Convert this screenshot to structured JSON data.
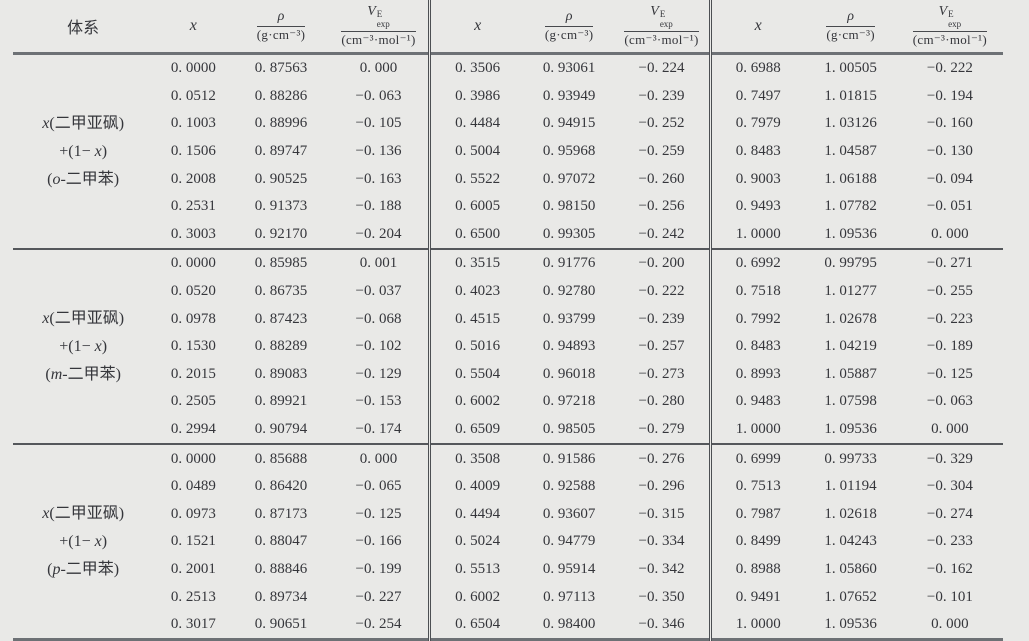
{
  "colors": {
    "background": "#e9e9e7",
    "text": "#35363b",
    "rule_dark": "#54575b",
    "rule_thick": "#6d7175"
  },
  "header": {
    "system": "体系",
    "x": "x",
    "rho_symbol": "ρ",
    "rho_unit": "(g·cm⁻³)",
    "ve_symbol": "V",
    "ve_sup": "E",
    "ve_sub": "exp",
    "ve_unit": "(cm⁻³·mol⁻¹)"
  },
  "groups": [
    {
      "label_lines": [
        "x(二甲亚砜)",
        "+(1− x)",
        "(o-二甲苯)"
      ],
      "blocks": [
        [
          [
            "0. 0000",
            "0. 87563",
            "0. 000"
          ],
          [
            "0. 0512",
            "0. 88286",
            "−0. 063"
          ],
          [
            "0. 1003",
            "0. 88996",
            "−0. 105"
          ],
          [
            "0. 1506",
            "0. 89747",
            "−0. 136"
          ],
          [
            "0. 2008",
            "0. 90525",
            "−0. 163"
          ],
          [
            "0. 2531",
            "0. 91373",
            "−0. 188"
          ],
          [
            "0. 3003",
            "0. 92170",
            "−0. 204"
          ]
        ],
        [
          [
            "0. 3506",
            "0. 93061",
            "−0. 224"
          ],
          [
            "0. 3986",
            "0. 93949",
            "−0. 239"
          ],
          [
            "0. 4484",
            "0. 94915",
            "−0. 252"
          ],
          [
            "0. 5004",
            "0. 95968",
            "−0. 259"
          ],
          [
            "0. 5522",
            "0. 97072",
            "−0. 260"
          ],
          [
            "0. 6005",
            "0. 98150",
            "−0. 256"
          ],
          [
            "0. 6500",
            "0. 99305",
            "−0. 242"
          ]
        ],
        [
          [
            "0. 6988",
            "1. 00505",
            "−0. 222"
          ],
          [
            "0. 7497",
            "1. 01815",
            "−0. 194"
          ],
          [
            "0. 7979",
            "1. 03126",
            "−0. 160"
          ],
          [
            "0. 8483",
            "1. 04587",
            "−0. 130"
          ],
          [
            "0. 9003",
            "1. 06188",
            "−0. 094"
          ],
          [
            "0. 9493",
            "1. 07782",
            "−0. 051"
          ],
          [
            "1. 0000",
            "1. 09536",
            "0. 000"
          ]
        ]
      ]
    },
    {
      "label_lines": [
        "x(二甲亚砜)",
        "+(1− x)",
        "(m-二甲苯)"
      ],
      "blocks": [
        [
          [
            "0. 0000",
            "0. 85985",
            "0. 001"
          ],
          [
            "0. 0520",
            "0. 86735",
            "−0. 037"
          ],
          [
            "0. 0978",
            "0. 87423",
            "−0. 068"
          ],
          [
            "0. 1530",
            "0. 88289",
            "−0. 102"
          ],
          [
            "0. 2015",
            "0. 89083",
            "−0. 129"
          ],
          [
            "0. 2505",
            "0. 89921",
            "−0. 153"
          ],
          [
            "0. 2994",
            "0. 90794",
            "−0. 174"
          ]
        ],
        [
          [
            "0. 3515",
            "0. 91776",
            "−0. 200"
          ],
          [
            "0. 4023",
            "0. 92780",
            "−0. 222"
          ],
          [
            "0. 4515",
            "0. 93799",
            "−0. 239"
          ],
          [
            "0. 5016",
            "0. 94893",
            "−0. 257"
          ],
          [
            "0. 5504",
            "0. 96018",
            "−0. 273"
          ],
          [
            "0. 6002",
            "0. 97218",
            "−0. 280"
          ],
          [
            "0. 6509",
            "0. 98505",
            "−0. 279"
          ]
        ],
        [
          [
            "0. 6992",
            "0. 99795",
            "−0. 271"
          ],
          [
            "0. 7518",
            "1. 01277",
            "−0. 255"
          ],
          [
            "0. 7992",
            "1. 02678",
            "−0. 223"
          ],
          [
            "0. 8483",
            "1. 04219",
            "−0. 189"
          ],
          [
            "0. 8993",
            "1. 05887",
            "−0. 125"
          ],
          [
            "0. 9483",
            "1. 07598",
            "−0. 063"
          ],
          [
            "1. 0000",
            "1. 09536",
            "0. 000"
          ]
        ]
      ]
    },
    {
      "label_lines": [
        "x(二甲亚砜)",
        "+(1− x)",
        "(p-二甲苯)"
      ],
      "blocks": [
        [
          [
            "0. 0000",
            "0. 85688",
            "0. 000"
          ],
          [
            "0. 0489",
            "0. 86420",
            "−0. 065"
          ],
          [
            "0. 0973",
            "0. 87173",
            "−0. 125"
          ],
          [
            "0. 1521",
            "0. 88047",
            "−0. 166"
          ],
          [
            "0. 2001",
            "0. 88846",
            "−0. 199"
          ],
          [
            "0. 2513",
            "0. 89734",
            "−0. 227"
          ],
          [
            "0. 3017",
            "0. 90651",
            "−0. 254"
          ]
        ],
        [
          [
            "0. 3508",
            "0. 91586",
            "−0. 276"
          ],
          [
            "0. 4009",
            "0. 92588",
            "−0. 296"
          ],
          [
            "0. 4494",
            "0. 93607",
            "−0. 315"
          ],
          [
            "0. 5024",
            "0. 94779",
            "−0. 334"
          ],
          [
            "0. 5513",
            "0. 95914",
            "−0. 342"
          ],
          [
            "0. 6002",
            "0. 97113",
            "−0. 350"
          ],
          [
            "0. 6504",
            "0. 98400",
            "−0. 346"
          ]
        ],
        [
          [
            "0. 6999",
            "0. 99733",
            "−0. 329"
          ],
          [
            "0. 7513",
            "1. 01194",
            "−0. 304"
          ],
          [
            "0. 7987",
            "1. 02618",
            "−0. 274"
          ],
          [
            "0. 8499",
            "1. 04243",
            "−0. 233"
          ],
          [
            "0. 8988",
            "1. 05860",
            "−0. 162"
          ],
          [
            "0. 9491",
            "1. 07652",
            "−0. 101"
          ],
          [
            "1. 0000",
            "1. 09536",
            "0. 000"
          ]
        ]
      ]
    }
  ]
}
